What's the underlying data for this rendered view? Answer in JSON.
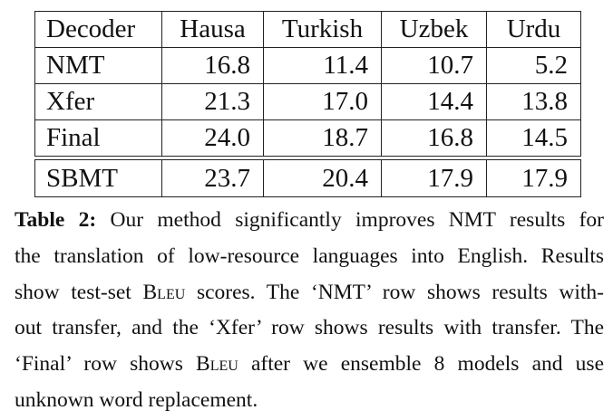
{
  "table": {
    "header": [
      "Decoder",
      "Hausa",
      "Turkish",
      "Uzbek",
      "Urdu"
    ],
    "rows": [
      {
        "label": "NMT",
        "values": [
          "16.8",
          "11.4",
          "10.7",
          "5.2"
        ]
      },
      {
        "label": "Xfer",
        "values": [
          "21.3",
          "17.0",
          "14.4",
          "13.8"
        ]
      },
      {
        "label": "Final",
        "values": [
          "24.0",
          "18.7",
          "16.8",
          "14.5"
        ]
      }
    ],
    "baseline": {
      "label": "SBMT",
      "values": [
        "23.7",
        "20.4",
        "17.9",
        "17.9"
      ]
    }
  },
  "caption": {
    "tag": "Table 2:",
    "line1": "Our method significantly improves NMT results for",
    "line2": "the translation of low-resource languages into English. Results",
    "line3_a": "show test-set ",
    "bleu": "Bleu",
    "line3_b": " scores. The ‘NMT’ row shows results with-",
    "line4": "out transfer, and the ‘Xfer’ row shows results with transfer. The",
    "line5_a": "‘Final’ row shows ",
    "line5_b": " after we ensemble 8 models and use",
    "line6": "unknown word replacement."
  }
}
